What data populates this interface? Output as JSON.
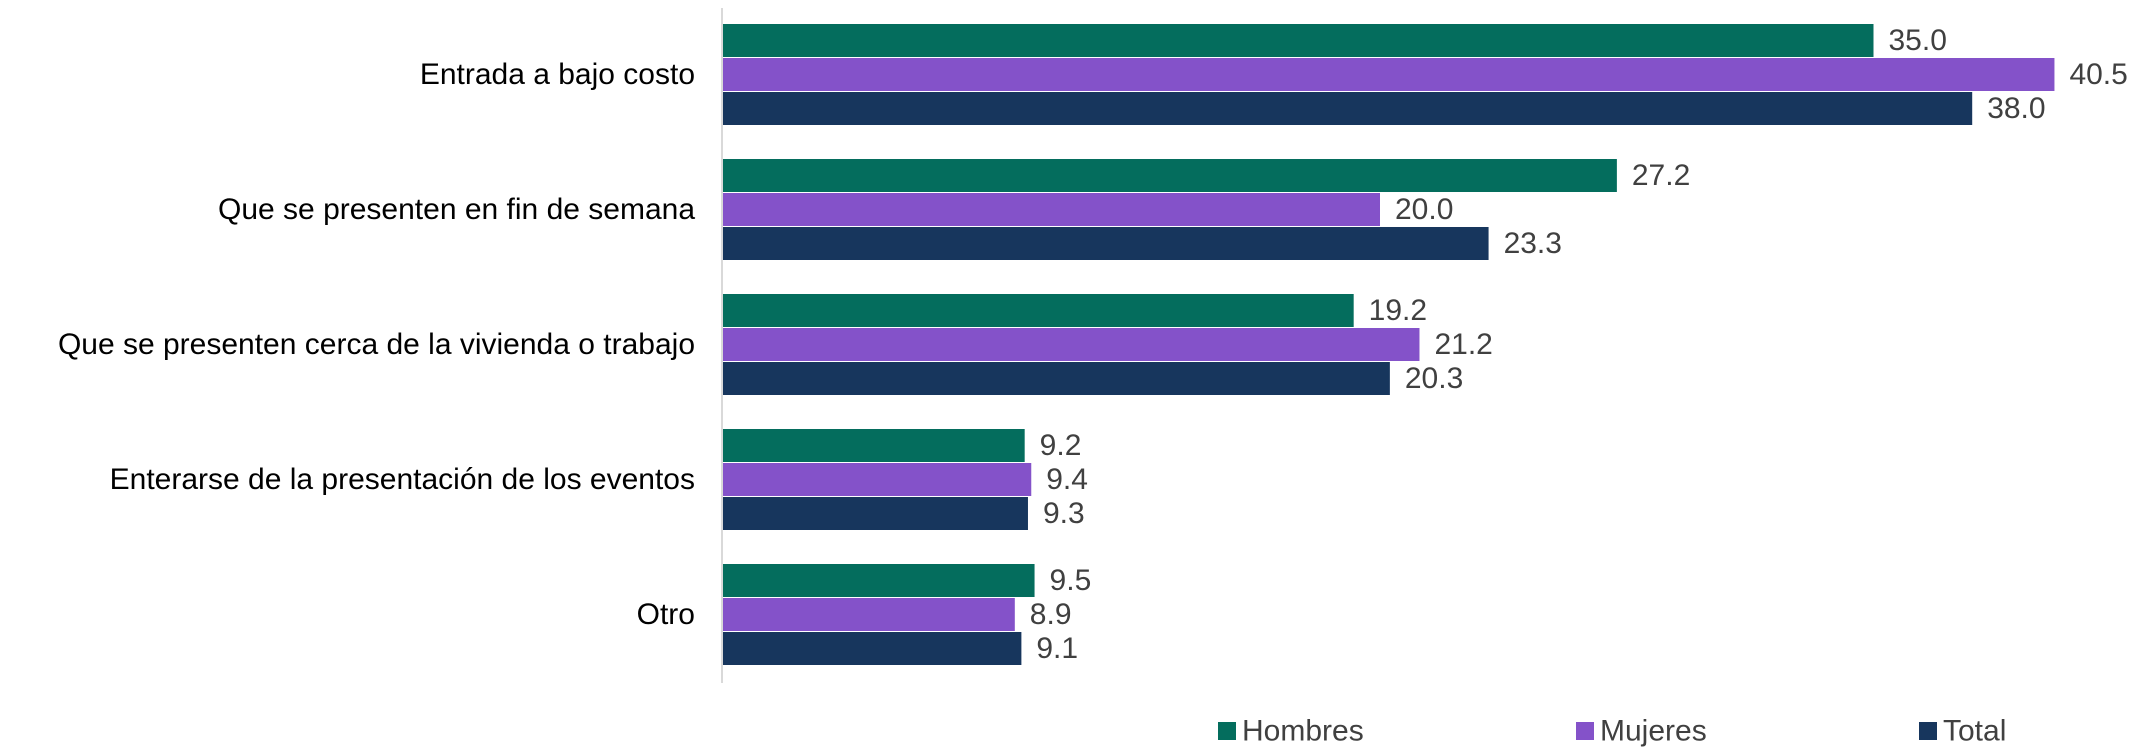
{
  "chart_data": {
    "type": "bar",
    "orientation": "horizontal",
    "categories": [
      "Entrada a bajo costo",
      "Que se presenten en fin de semana",
      "Que se presenten cerca de la vivienda o trabajo",
      "Enterarse de la presentación de los eventos",
      "Otro"
    ],
    "series": [
      {
        "name": "Hombres",
        "color": "#046D5D",
        "values": [
          35.0,
          27.2,
          19.2,
          9.2,
          9.5
        ]
      },
      {
        "name": "Mujeres",
        "color": "#8452C9",
        "values": [
          40.5,
          20.0,
          21.2,
          9.4,
          8.9
        ]
      },
      {
        "name": "Total",
        "color": "#17365D",
        "values": [
          38.0,
          23.3,
          20.3,
          9.3,
          9.1
        ]
      }
    ],
    "value_labels": [
      [
        "35.0",
        "27.2",
        "19.2",
        "9.2",
        "9.5"
      ],
      [
        "40.5",
        "20.0",
        "21.2",
        "9.4",
        "8.9"
      ],
      [
        "38.0",
        "23.3",
        "20.3",
        "9.3",
        "9.1"
      ]
    ],
    "xlim": [
      0,
      41
    ],
    "grid": false,
    "legend_position": "bottom-right",
    "axis_line_color": "#D9D9D9"
  }
}
